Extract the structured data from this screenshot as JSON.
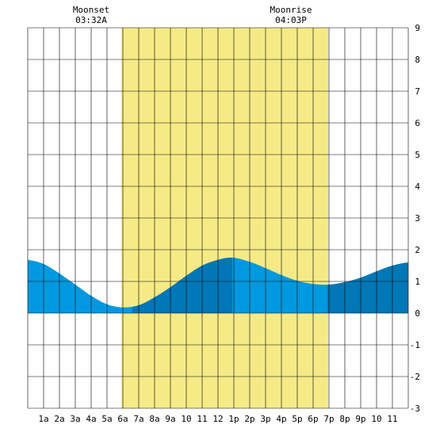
{
  "chart_data": {
    "type": "area",
    "title": "",
    "xlabel": "",
    "ylabel": "",
    "xlim": [
      0,
      24
    ],
    "ylim": [
      -3,
      9
    ],
    "grid": true,
    "x_tick_labels": [
      "1a",
      "2a",
      "3a",
      "4a",
      "5a",
      "6a",
      "7a",
      "8a",
      "9a",
      "10",
      "11",
      "12",
      "1p",
      "2p",
      "3p",
      "4p",
      "5p",
      "6p",
      "7p",
      "8p",
      "9p",
      "10",
      "11"
    ],
    "y_tick_labels": [
      "9",
      "8",
      "7",
      "6",
      "5",
      "4",
      "3",
      "2",
      "1",
      "0",
      "-1",
      "-2",
      "-3"
    ],
    "daylight": {
      "start": 5.9,
      "end": 18.95
    },
    "moon_events": [
      {
        "label": "Moonset",
        "time": "03:32A",
        "x": 4.0
      },
      {
        "label": "Moonrise",
        "time": "04:03P",
        "x": 16.6
      }
    ],
    "series": [
      {
        "x": [
          0,
          1,
          2,
          3,
          4,
          5,
          6,
          7,
          8,
          9,
          10,
          11,
          12,
          12.9,
          14,
          15,
          16,
          17,
          18,
          19,
          20,
          21,
          22,
          23,
          24
        ],
        "values": [
          1.68,
          1.55,
          1.25,
          0.9,
          0.55,
          0.28,
          0.18,
          0.25,
          0.5,
          0.82,
          1.18,
          1.5,
          1.68,
          1.75,
          1.62,
          1.42,
          1.2,
          1.02,
          0.92,
          0.9,
          0.98,
          1.12,
          1.32,
          1.5,
          1.6
        ]
      }
    ],
    "shading_segments": [
      {
        "from": 0,
        "to": 6.6,
        "tone": "light"
      },
      {
        "from": 6.6,
        "to": 12.9,
        "tone": "dark"
      },
      {
        "from": 12.9,
        "to": 18.9,
        "tone": "light"
      },
      {
        "from": 18.9,
        "to": 24,
        "tone": "dark"
      }
    ],
    "colors": {
      "daylight": "#f5ea86",
      "tide_light": "#0099e0",
      "tide_dark": "#0077b6",
      "grid": "#000000",
      "background": "#ffffff"
    }
  }
}
